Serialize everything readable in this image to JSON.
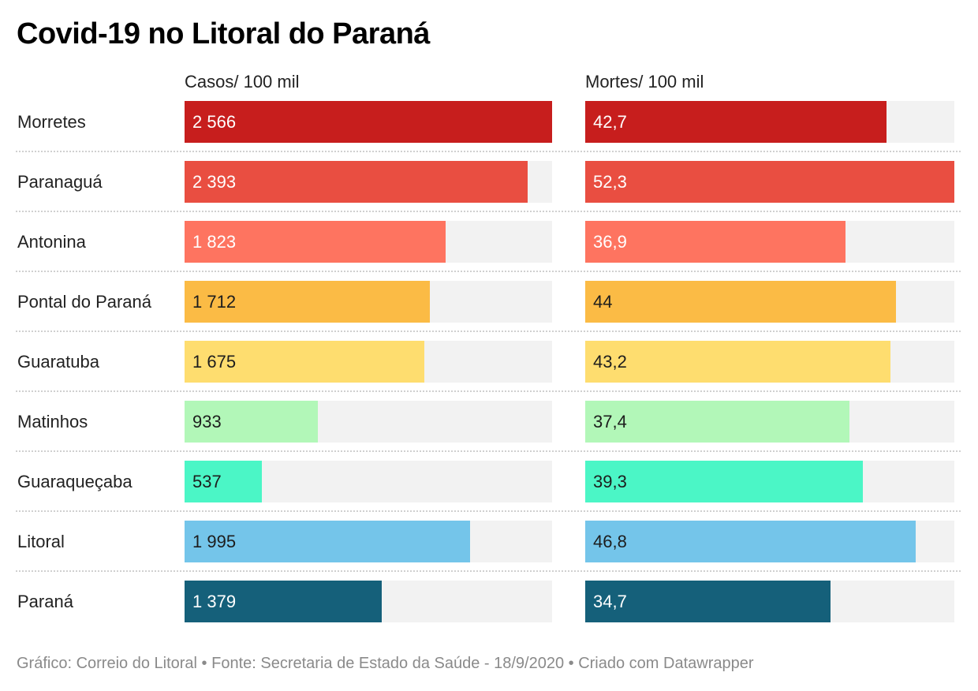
{
  "title": "Covid-19 no Litoral do Paraná",
  "footer": "Gráfico: Correio do Litoral • Fonte: Secretaria de Estado da Saúde - 18/9/2020 • Criado com Datawrapper",
  "chart_data": {
    "type": "bar",
    "orientation": "horizontal",
    "title": "Covid-19 no Litoral do Paraná",
    "categories": [
      "Morretes",
      "Paranaguá",
      "Antonina",
      "Pontal do Paraná",
      "Guaratuba",
      "Matinhos",
      "Guaraqueçaba",
      "Litoral",
      "Paraná"
    ],
    "series": [
      {
        "name": "Casos/ 100 mil",
        "values": [
          2566,
          2393,
          1823,
          1712,
          1675,
          933,
          537,
          1995,
          1379
        ],
        "labels": [
          "2 566",
          "2 393",
          "1 823",
          "1 712",
          "1 675",
          "933",
          "537",
          "1 995",
          "1 379"
        ],
        "max": 2566
      },
      {
        "name": "Mortes/ 100 mil",
        "values": [
          42.7,
          52.3,
          36.9,
          44,
          43.2,
          37.4,
          39.3,
          46.8,
          34.7
        ],
        "labels": [
          "42,7",
          "52,3",
          "36,9",
          "44",
          "43,2",
          "37,4",
          "39,3",
          "46,8",
          "34,7"
        ],
        "max": 52.3
      }
    ],
    "row_colors": [
      "#c71e1d",
      "#e94e41",
      "#fe7460",
      "#fbbb45",
      "#fedd6f",
      "#b2f7b8",
      "#4bf6c6",
      "#74c5ea",
      "#15607a"
    ],
    "label_colors": [
      "#ffffff",
      "#ffffff",
      "#ffffff",
      "#1d1d1d",
      "#1d1d1d",
      "#1d1d1d",
      "#1d1d1d",
      "#1d1d1d",
      "#ffffff"
    ],
    "track_color": "#f2f2f2",
    "grid": false,
    "legend": "none"
  }
}
